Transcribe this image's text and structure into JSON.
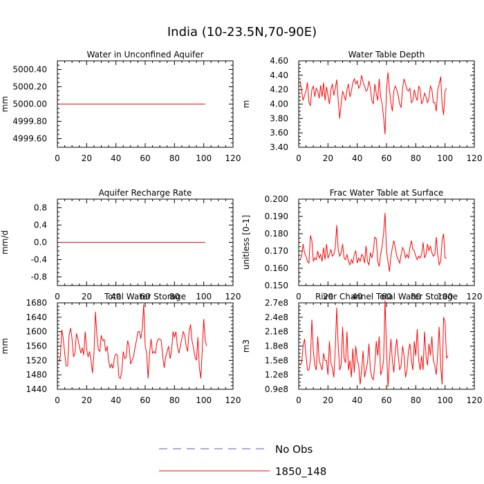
{
  "figure_title": "India (10-23.5N,70-90E)",
  "colors": {
    "model_line": "#ff0000",
    "obs_line": "#5a5ab4",
    "axis": "#000000"
  },
  "legend": {
    "entries": [
      {
        "label": "No Obs",
        "style": "dashed",
        "color": "#5a5ab4"
      },
      {
        "label": "1850_148",
        "style": "solid",
        "color": "#ff0000"
      }
    ]
  },
  "chart_data": [
    {
      "type": "line",
      "title": "Water in Unconfined Aquifer",
      "ylabel": "mm",
      "xlabel": "",
      "xlim": [
        0,
        120
      ],
      "xticks": [
        0,
        20,
        40,
        60,
        80,
        100,
        120
      ],
      "ylim": [
        4999.5,
        5000.5
      ],
      "yticks": [
        4999.6,
        4999.8,
        5000.0,
        5000.2,
        5000.4
      ],
      "yticklabels": [
        "4999.60",
        "4999.80",
        "5000.00",
        "5000.20",
        "5000.40"
      ],
      "series": [
        {
          "name": "1850_148",
          "x_start": 1,
          "x_step": 1,
          "values": [
            5000.0,
            5000.0,
            5000.0,
            5000.0,
            5000.0,
            5000.0,
            5000.0,
            5000.0,
            5000.0,
            5000.0,
            5000.0,
            5000.0,
            5000.0,
            5000.0,
            5000.0,
            5000.0,
            5000.0,
            5000.0,
            5000.0,
            5000.0,
            5000.0,
            5000.0,
            5000.0,
            5000.0,
            5000.0,
            5000.0,
            5000.0,
            5000.0,
            5000.0,
            5000.0,
            5000.0,
            5000.0,
            5000.0,
            5000.0,
            5000.0,
            5000.0,
            5000.0,
            5000.0,
            5000.0,
            5000.0,
            5000.0,
            5000.0,
            5000.0,
            5000.0,
            5000.0,
            5000.0,
            5000.0,
            5000.0,
            5000.0,
            5000.0,
            5000.0,
            5000.0,
            5000.0,
            5000.0,
            5000.0,
            5000.0,
            5000.0,
            5000.0,
            5000.0,
            5000.0,
            5000.0,
            5000.0,
            5000.0,
            5000.0,
            5000.0,
            5000.0,
            5000.0,
            5000.0,
            5000.0,
            5000.0,
            5000.0,
            5000.0,
            5000.0,
            5000.0,
            5000.0,
            5000.0,
            5000.0,
            5000.0,
            5000.0,
            5000.0,
            5000.0,
            5000.0,
            5000.0,
            5000.0,
            5000.0,
            5000.0,
            5000.0,
            5000.0,
            5000.0,
            5000.0,
            5000.0,
            5000.0,
            5000.0,
            5000.0,
            5000.0,
            5000.0,
            5000.0,
            5000.0,
            5000.0,
            5000.0,
            5000.0
          ]
        }
      ]
    },
    {
      "type": "line",
      "title": "Water Table Depth",
      "ylabel": "m",
      "xlabel": "",
      "xlim": [
        0,
        120
      ],
      "xticks": [
        0,
        20,
        40,
        60,
        80,
        100,
        120
      ],
      "ylim": [
        3.4,
        4.6
      ],
      "yticks": [
        3.4,
        3.6,
        3.8,
        4.0,
        4.2,
        4.4,
        4.6
      ],
      "yticklabels": [
        "3.40",
        "3.60",
        "3.80",
        "4.00",
        "4.20",
        "4.40",
        "4.60"
      ],
      "series": [
        {
          "name": "1850_148",
          "x_start": 1,
          "x_step": 1,
          "values": [
            4.32,
            4.18,
            4.05,
            4.12,
            4.18,
            4.3,
            4.02,
            3.98,
            4.2,
            4.25,
            4.1,
            4.22,
            4.18,
            4.08,
            4.26,
            4.1,
            4.3,
            4.05,
            4.24,
            4.12,
            4.0,
            4.2,
            4.28,
            4.12,
            4.22,
            4.34,
            4.05,
            3.8,
            4.0,
            4.18,
            4.12,
            4.05,
            4.2,
            4.28,
            4.1,
            4.18,
            4.3,
            4.35,
            4.28,
            4.32,
            4.22,
            4.26,
            4.4,
            4.3,
            4.25,
            4.18,
            4.2,
            4.32,
            4.22,
            4.05,
            4.0,
            4.28,
            4.15,
            4.05,
            4.35,
            4.1,
            4.0,
            3.82,
            3.58,
            4.2,
            4.44,
            4.2,
            4.02,
            3.9,
            4.18,
            4.25,
            4.2,
            4.12,
            4.0,
            3.95,
            4.22,
            4.35,
            4.28,
            4.2,
            4.18,
            4.22,
            4.02,
            4.05,
            4.2,
            4.1,
            4.05,
            4.25,
            4.2,
            4.0,
            4.05,
            4.15,
            4.1,
            4.02,
            4.08,
            4.25,
            4.2,
            4.02,
            4.02,
            3.9,
            4.2,
            4.28,
            4.38,
            4.0,
            3.85,
            4.18,
            4.22
          ]
        }
      ]
    },
    {
      "type": "line",
      "title": "Aquifer Recharge Rate",
      "ylabel": "mm/d",
      "xlabel": "",
      "xlim": [
        0,
        120
      ],
      "xticks": [
        0,
        20,
        40,
        60,
        80,
        100,
        120
      ],
      "ylim": [
        -1.0,
        1.0
      ],
      "yticks": [
        -0.8,
        -0.4,
        0.0,
        0.4,
        0.8
      ],
      "yticklabels": [
        "-0.8",
        "-0.4",
        "0.0",
        "0.4",
        "0.8"
      ],
      "series": [
        {
          "name": "1850_148",
          "x_start": 1,
          "x_step": 1,
          "values": [
            0,
            0,
            0,
            0,
            0,
            0,
            0,
            0,
            0,
            0,
            0,
            0,
            0,
            0,
            0,
            0,
            0,
            0,
            0,
            0,
            0,
            0,
            0,
            0,
            0,
            0,
            0,
            0,
            0,
            0,
            0,
            0,
            0,
            0,
            0,
            0,
            0,
            0,
            0,
            0,
            0,
            0,
            0,
            0,
            0,
            0,
            0,
            0,
            0,
            0,
            0,
            0,
            0,
            0,
            0,
            0,
            0,
            0,
            0,
            0,
            0,
            0,
            0,
            0,
            0,
            0,
            0,
            0,
            0,
            0,
            0,
            0,
            0,
            0,
            0,
            0,
            0,
            0,
            0,
            0,
            0,
            0,
            0,
            0,
            0,
            0,
            0,
            0,
            0,
            0,
            0,
            0,
            0,
            0,
            0,
            0,
            0,
            0,
            0,
            0,
            0
          ]
        }
      ]
    },
    {
      "type": "line",
      "title": "Frac Water Table at Surface",
      "ylabel": "unitless [0-1]",
      "xlabel": "",
      "xlim": [
        0,
        120
      ],
      "xticks": [
        0,
        20,
        40,
        60,
        80,
        100,
        120
      ],
      "ylim": [
        0.15,
        0.2
      ],
      "yticks": [
        0.15,
        0.16,
        0.17,
        0.18,
        0.19,
        0.2
      ],
      "yticklabels": [
        "0.150",
        "0.160",
        "0.170",
        "0.180",
        "0.190",
        "0.200"
      ],
      "series": [
        {
          "name": "1850_148",
          "x_start": 1,
          "x_step": 1,
          "values": [
            0.165,
            0.167,
            0.174,
            0.169,
            0.167,
            0.164,
            0.163,
            0.179,
            0.176,
            0.164,
            0.166,
            0.165,
            0.17,
            0.166,
            0.168,
            0.164,
            0.172,
            0.165,
            0.174,
            0.166,
            0.168,
            0.171,
            0.167,
            0.168,
            0.172,
            0.185,
            0.171,
            0.167,
            0.169,
            0.174,
            0.166,
            0.165,
            0.168,
            0.164,
            0.162,
            0.165,
            0.163,
            0.168,
            0.17,
            0.163,
            0.166,
            0.164,
            0.168,
            0.167,
            0.163,
            0.173,
            0.164,
            0.162,
            0.169,
            0.166,
            0.17,
            0.178,
            0.177,
            0.164,
            0.161,
            0.168,
            0.173,
            0.18,
            0.192,
            0.17,
            0.164,
            0.158,
            0.167,
            0.172,
            0.176,
            0.172,
            0.167,
            0.165,
            0.163,
            0.168,
            0.172,
            0.17,
            0.166,
            0.168,
            0.166,
            0.172,
            0.176,
            0.171,
            0.17,
            0.167,
            0.165,
            0.167,
            0.166,
            0.168,
            0.175,
            0.166,
            0.168,
            0.174,
            0.17,
            0.173,
            0.169,
            0.167,
            0.168,
            0.178,
            0.168,
            0.162,
            0.164,
            0.176,
            0.18,
            0.166,
            0.166
          ]
        }
      ]
    },
    {
      "type": "line",
      "title": "Total Water Storage",
      "ylabel": "mm",
      "xlabel": "",
      "xlim": [
        0,
        120
      ],
      "xticks": [
        0,
        20,
        40,
        60,
        80,
        100,
        120
      ],
      "ylim": [
        1440,
        1680
      ],
      "yticks": [
        1440,
        1480,
        1520,
        1560,
        1600,
        1640,
        1680
      ],
      "yticklabels": [
        "1440",
        "1480",
        "1520",
        "1560",
        "1600",
        "1640",
        "1680"
      ],
      "series": [
        {
          "name": "1850_148",
          "x_start": 1,
          "x_step": 1,
          "values": [
            1515,
            1530,
            1605,
            1580,
            1540,
            1505,
            1505,
            1590,
            1610,
            1580,
            1530,
            1540,
            1595,
            1580,
            1560,
            1540,
            1555,
            1535,
            1600,
            1550,
            1530,
            1545,
            1520,
            1485,
            1540,
            1655,
            1590,
            1550,
            1545,
            1590,
            1575,
            1578,
            1545,
            1560,
            1520,
            1500,
            1510,
            1498,
            1530,
            1538,
            1535,
            1475,
            1470,
            1490,
            1545,
            1525,
            1530,
            1575,
            1560,
            1510,
            1520,
            1530,
            1555,
            1575,
            1600,
            1600,
            1580,
            1610,
            1676,
            1560,
            1540,
            1470,
            1540,
            1580,
            1540,
            1545,
            1540,
            1570,
            1580,
            1580,
            1575,
            1530,
            1500,
            1530,
            1545,
            1560,
            1525,
            1545,
            1600,
            1585,
            1600,
            1560,
            1540,
            1560,
            1580,
            1600,
            1590,
            1560,
            1545,
            1600,
            1620,
            1575,
            1555,
            1530,
            1520,
            1585,
            1500,
            1470,
            1550,
            1635,
            1575,
            1560
          ]
        }
      ]
    },
    {
      "type": "line",
      "title": "River Channel Total Water Storage",
      "ylabel": "m3",
      "xlabel": "",
      "xlim": [
        0,
        120
      ],
      "xticks": [
        0,
        20,
        40,
        60,
        80,
        100,
        120
      ],
      "ylim": [
        90000000,
        270000000
      ],
      "yticks": [
        90000000,
        120000000,
        150000000,
        180000000,
        210000000,
        240000000,
        270000000
      ],
      "yticklabels": [
        "0.9e8",
        "1.2e8",
        "1.5e8",
        "1.8e8",
        "2.1e8",
        "2.4e8",
        "2.7e8"
      ],
      "series": [
        {
          "name": "1850_148",
          "x_start": 1,
          "x_step": 1,
          "values": [
            140000000,
            145000000,
            180000000,
            195000000,
            160000000,
            130000000,
            130000000,
            150000000,
            235000000,
            170000000,
            140000000,
            130000000,
            200000000,
            150000000,
            140000000,
            130000000,
            165000000,
            150000000,
            150000000,
            120000000,
            190000000,
            145000000,
            135000000,
            115000000,
            175000000,
            260000000,
            180000000,
            130000000,
            140000000,
            220000000,
            155000000,
            145000000,
            210000000,
            130000000,
            150000000,
            115000000,
            175000000,
            125000000,
            180000000,
            150000000,
            140000000,
            100000000,
            130000000,
            170000000,
            115000000,
            130000000,
            145000000,
            185000000,
            130000000,
            115000000,
            110000000,
            140000000,
            190000000,
            160000000,
            200000000,
            120000000,
            130000000,
            150000000,
            275000000,
            175000000,
            95000000,
            150000000,
            195000000,
            150000000,
            125000000,
            170000000,
            195000000,
            160000000,
            130000000,
            140000000,
            180000000,
            160000000,
            115000000,
            130000000,
            170000000,
            185000000,
            150000000,
            130000000,
            190000000,
            160000000,
            215000000,
            150000000,
            130000000,
            160000000,
            130000000,
            210000000,
            160000000,
            140000000,
            185000000,
            160000000,
            200000000,
            150000000,
            140000000,
            120000000,
            165000000,
            220000000,
            140000000,
            100000000,
            240000000,
            230000000,
            155000000,
            160000000
          ]
        }
      ]
    }
  ]
}
